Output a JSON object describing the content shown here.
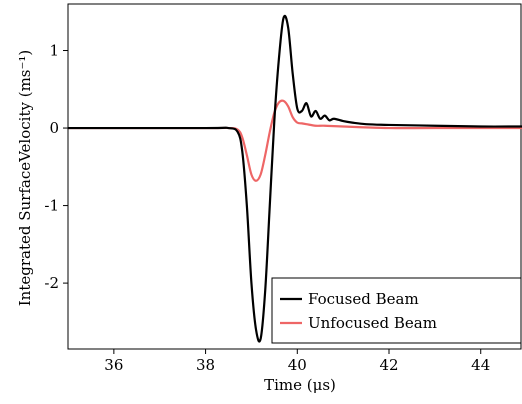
{
  "chart_data": {
    "type": "line",
    "xlabel": "Time (μs)",
    "ylabel": "Integrated SurfaceVelocity (ms⁻¹)",
    "xlim": [
      35.0,
      44.9
    ],
    "ylim": [
      -2.85,
      1.6
    ],
    "xticks": [
      36,
      38,
      40,
      42,
      44
    ],
    "yticks": [
      -2,
      -1,
      0,
      1
    ],
    "xtick_labels": [
      "36",
      "38",
      "40",
      "42",
      "44"
    ],
    "ytick_labels": [
      "-2",
      "-1",
      "0",
      "1"
    ],
    "grid": false,
    "legend_position": "bottom-right",
    "series": [
      {
        "name": "Focused Beam",
        "color": "#000000",
        "x": [
          35.0,
          38.0,
          38.5,
          38.7,
          38.8,
          38.9,
          39.0,
          39.1,
          39.2,
          39.3,
          39.4,
          39.5,
          39.6,
          39.7,
          39.8,
          39.9,
          40.0,
          40.1,
          40.2,
          40.3,
          40.4,
          40.5,
          40.6,
          40.7,
          40.8,
          41.0,
          41.2,
          41.5,
          42.0,
          43.0,
          44.0,
          44.9
        ],
        "y": [
          0.0,
          0.0,
          0.0,
          -0.05,
          -0.3,
          -1.0,
          -2.0,
          -2.6,
          -2.72,
          -2.1,
          -1.0,
          0.1,
          0.9,
          1.42,
          1.3,
          0.7,
          0.25,
          0.22,
          0.32,
          0.15,
          0.22,
          0.12,
          0.16,
          0.1,
          0.12,
          0.09,
          0.07,
          0.05,
          0.04,
          0.03,
          0.02,
          0.02
        ]
      },
      {
        "name": "Unfocused Beam",
        "color": "#ee6666",
        "x": [
          35.0,
          38.0,
          38.5,
          38.7,
          38.8,
          38.9,
          39.0,
          39.1,
          39.2,
          39.3,
          39.4,
          39.5,
          39.6,
          39.7,
          39.8,
          39.9,
          40.0,
          40.1,
          40.2,
          40.4,
          40.6,
          41.0,
          42.0,
          43.0,
          44.9
        ],
        "y": [
          0.0,
          0.0,
          0.0,
          -0.02,
          -0.12,
          -0.35,
          -0.6,
          -0.68,
          -0.6,
          -0.35,
          -0.05,
          0.2,
          0.33,
          0.35,
          0.28,
          0.14,
          0.07,
          0.06,
          0.05,
          0.03,
          0.03,
          0.02,
          0.0,
          0.0,
          0.0
        ]
      }
    ]
  }
}
